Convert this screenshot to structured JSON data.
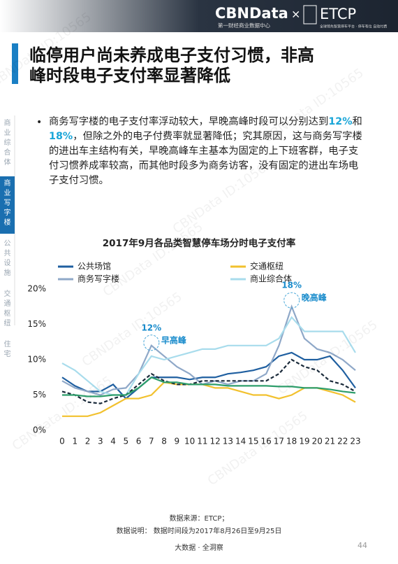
{
  "header": {
    "brand": "CBNData",
    "brand_sub": "第一财经商业数据中心",
    "times": "×",
    "partner": "ETCP",
    "partner_sub": "全球领先智慧停车平台 · 停车有位 自动付费"
  },
  "title": [
    "临停用户尚未养成电子支付习惯，非高",
    "峰时段电子支付率显著降低"
  ],
  "sidebar": {
    "tabs": [
      "商业综合体",
      "商业写字楼",
      "公共设施",
      "交通枢纽",
      "住宅"
    ],
    "active": 1
  },
  "bullet": {
    "segments": [
      {
        "text": "商务写字楼的电子支付率浮动较大，早晚高峰时段可以分别达到"
      },
      {
        "text": "12%",
        "emphasis": true
      },
      {
        "text": "和"
      },
      {
        "text": "18%",
        "emphasis": true
      },
      {
        "text": "，但除之外的电子付费率就显著降低；究其原因，这与商务写字楼的进出车主结构有关，早晚高峰车主基本为固定的上下班客群，电子支付习惯养成率较高，而其他时段多为商务访客，没有固定的进出车场电子支付习惯。"
      }
    ]
  },
  "chart_data": {
    "type": "line",
    "title": "2017年9月各品类智慧停车场分时电子支付率",
    "x": [
      0,
      1,
      2,
      3,
      4,
      5,
      6,
      7,
      8,
      9,
      10,
      11,
      12,
      13,
      14,
      15,
      16,
      17,
      18,
      19,
      20,
      21,
      22,
      23
    ],
    "xlim": [
      0,
      23
    ],
    "ylim": [
      0,
      20
    ],
    "yticks": [
      {
        "value": 0,
        "label": "0%"
      },
      {
        "value": 5,
        "label": "5%"
      },
      {
        "value": 10,
        "label": "10%"
      },
      {
        "value": 15,
        "label": "15%"
      },
      {
        "value": 20,
        "label": "20%"
      }
    ],
    "series": [
      {
        "name": "公共场馆",
        "color": "#1f5fa0",
        "values": [
          7.5,
          6.3,
          5.5,
          5.5,
          6.5,
          4.5,
          6,
          7.5,
          7.5,
          7.5,
          7.2,
          7.5,
          7.5,
          8,
          8.2,
          8.5,
          9,
          10.5,
          11,
          10,
          10,
          10.5,
          8.5,
          6
        ]
      },
      {
        "name": "交通枢纽",
        "color": "#f2c12e",
        "values": [
          2,
          2,
          2,
          2.5,
          3.5,
          4.5,
          4.5,
          5,
          6.8,
          6.5,
          6.5,
          6.5,
          6,
          6,
          5.5,
          5,
          5,
          4.5,
          5,
          6,
          6,
          5.5,
          5,
          4
        ]
      },
      {
        "name": "商务写字楼",
        "color": "#8fa8c8",
        "values": [
          7,
          6,
          5.5,
          5,
          5.8,
          6,
          8,
          12,
          10.5,
          9,
          8,
          6.5,
          7,
          6.5,
          7,
          7,
          8,
          12,
          17.5,
          13,
          11.5,
          11,
          10,
          8.5
        ]
      },
      {
        "name": "商业综合体",
        "color": "#a8dcec",
        "values": [
          9.5,
          8.5,
          7,
          5.5,
          5,
          5,
          8,
          10.5,
          10,
          10.5,
          11,
          11.5,
          11.5,
          12,
          12,
          12,
          12,
          13,
          16,
          14,
          14,
          14,
          14,
          11
        ]
      },
      {
        "color": "#1a2a3a",
        "dashed": true,
        "values": [
          5.5,
          5,
          4,
          3.8,
          4.5,
          5,
          6.5,
          8,
          7,
          6.5,
          6.5,
          7,
          7,
          7,
          7,
          7,
          7,
          8,
          10,
          9,
          8.5,
          7,
          6.5,
          5.5
        ]
      },
      {
        "color": "#2e9e6b",
        "values": [
          5,
          5,
          4.8,
          4.8,
          5,
          5,
          6,
          7.5,
          6.8,
          6.8,
          6.5,
          6.5,
          6.5,
          6.3,
          6.3,
          6.3,
          6.3,
          6.2,
          6.2,
          6,
          6,
          5.8,
          5.5,
          5.3
        ]
      }
    ],
    "annotations": [
      {
        "label": "12%",
        "note": "早高峰",
        "x": 7,
        "y": 12
      },
      {
        "label": "18%",
        "note": "晚高峰",
        "x": 18,
        "y": 18
      }
    ]
  },
  "source": [
    "数据来源：ETCP；",
    "数据说明：  数据时间段为2017年8月26日至9月25日"
  ],
  "footer": {
    "slogan": "大数据 · 全洞察",
    "page": "44"
  },
  "watermark": "CBNData ID:10565"
}
